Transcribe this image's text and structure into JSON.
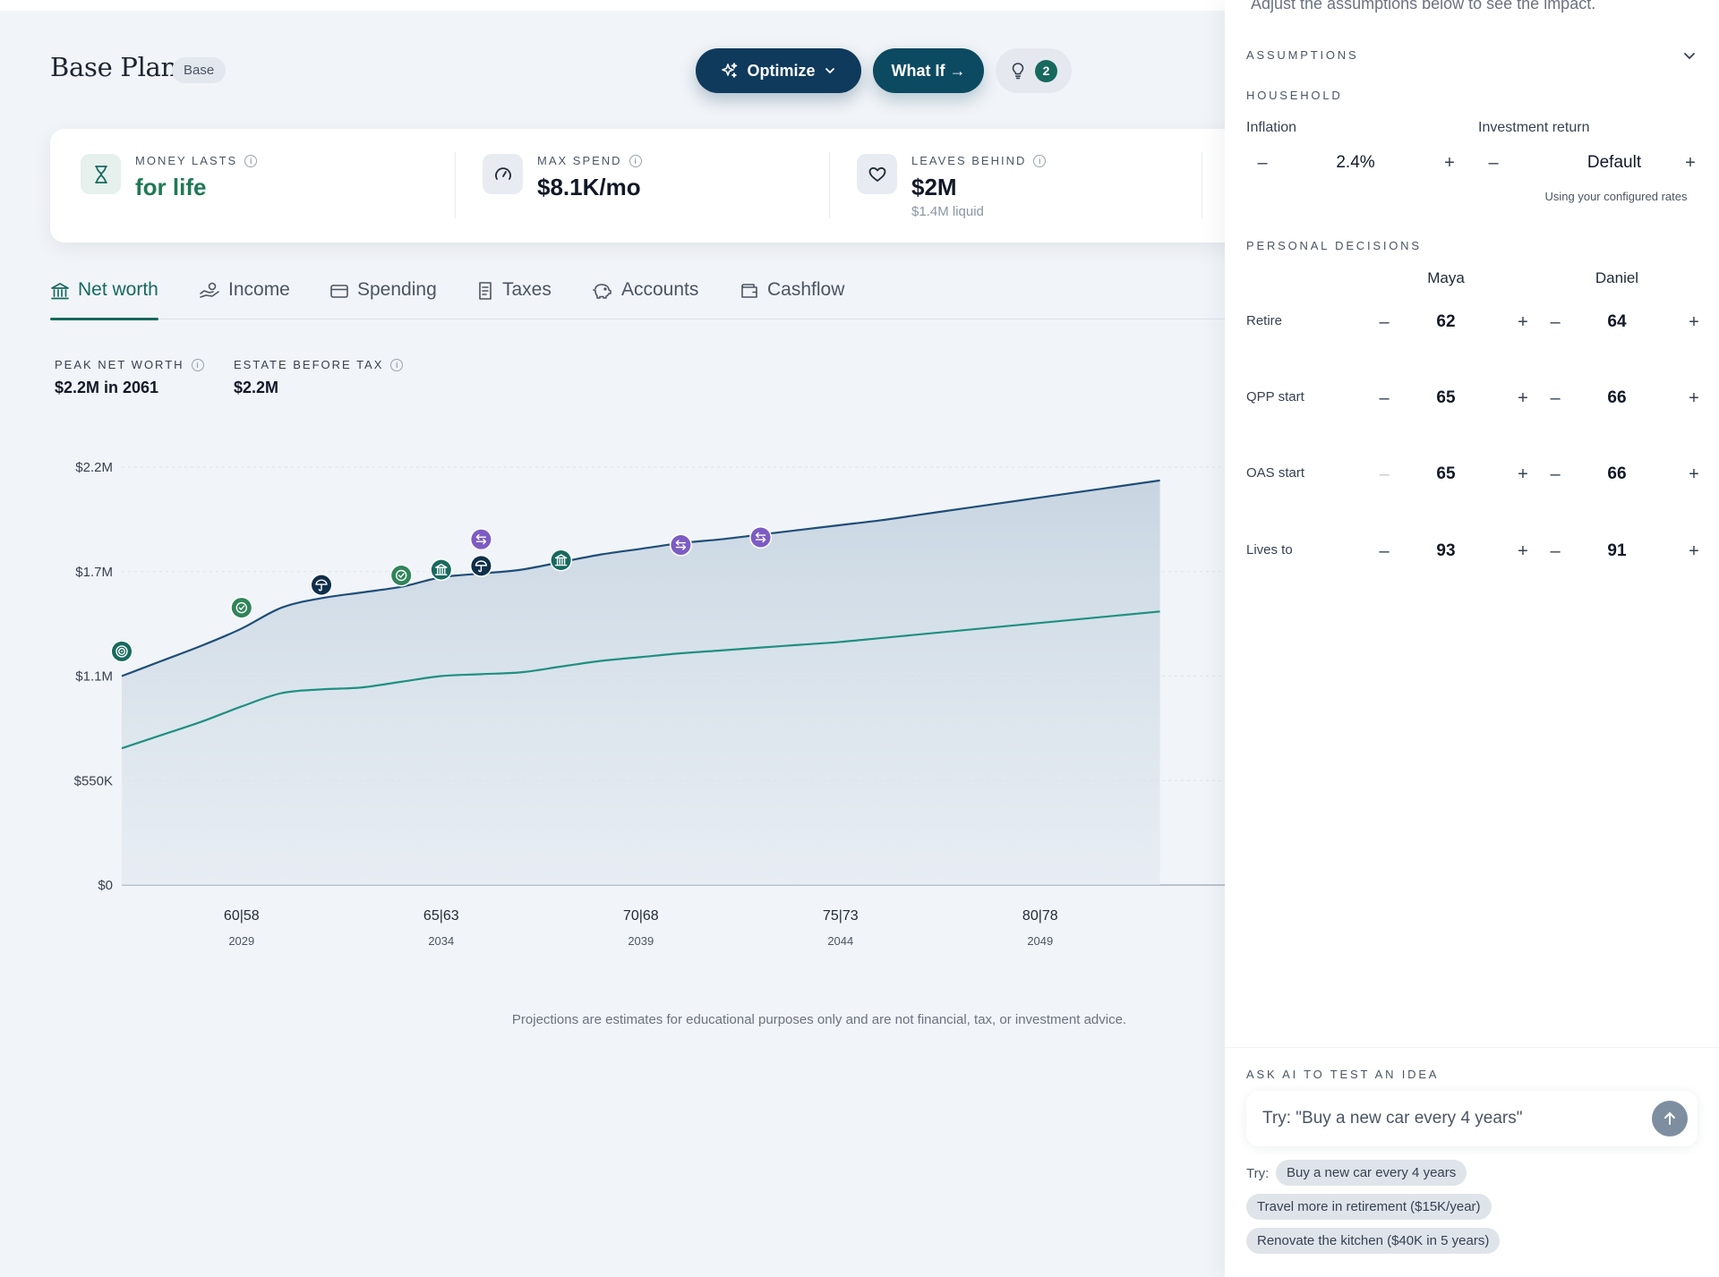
{
  "header": {
    "title": "Base Plan",
    "badge": "Base",
    "optimize_label": "Optimize",
    "whatif_label": "What If →",
    "insights_count": "2"
  },
  "summary": {
    "money_lasts": {
      "label": "MONEY LASTS",
      "value": "for life",
      "icon": "hourglass-icon"
    },
    "max_spend": {
      "label": "MAX SPEND",
      "value": "$8.1K/mo",
      "icon": "gauge-icon"
    },
    "leaves_behind": {
      "label": "LEAVES BEHIND",
      "value": "$2M",
      "sub": "$1.4M liquid",
      "icon": "heart-icon"
    }
  },
  "tabs": [
    {
      "label": "Net worth",
      "icon": "bank-icon",
      "active": true
    },
    {
      "label": "Income",
      "icon": "hand-coins-icon"
    },
    {
      "label": "Spending",
      "icon": "card-icon"
    },
    {
      "label": "Taxes",
      "icon": "receipt-icon"
    },
    {
      "label": "Accounts",
      "icon": "piggy-bank-icon"
    },
    {
      "label": "Cashflow",
      "icon": "wallet-icon"
    }
  ],
  "stats": {
    "peak": {
      "label": "PEAK NET WORTH",
      "value": "$2.2M in 2061"
    },
    "estate": {
      "label": "ESTATE BEFORE TAX",
      "value": "$2.2M"
    }
  },
  "chart_data": {
    "type": "area",
    "x_labels": [
      {
        "ages": "60|58",
        "year": "2029"
      },
      {
        "ages": "65|63",
        "year": "2034"
      },
      {
        "ages": "70|68",
        "year": "2039"
      },
      {
        "ages": "75|73",
        "year": "2044"
      },
      {
        "ages": "80|78",
        "year": "2049"
      }
    ],
    "y_ticks": [
      "$0",
      "$550K",
      "$1.1M",
      "$1.7M",
      "$2.2M"
    ],
    "ylim": [
      0,
      2200000
    ],
    "x": [
      2026,
      2027,
      2028,
      2029,
      2030,
      2031,
      2032,
      2033,
      2034,
      2035,
      2036,
      2037,
      2038,
      2039,
      2040,
      2041,
      2042,
      2043,
      2044,
      2045,
      2046,
      2047,
      2048,
      2049,
      2050,
      2051,
      2052
    ],
    "series": [
      {
        "values": [
          1100000,
          1180000,
          1260000,
          1350000,
          1460000,
          1510000,
          1540000,
          1570000,
          1620000,
          1640000,
          1660000,
          1700000,
          1740000,
          1770000,
          1800000,
          1820000,
          1845000,
          1870000,
          1895000,
          1920000,
          1950000,
          1980000,
          2010000,
          2040000,
          2070000,
          2100000,
          2130000
        ],
        "color": "#1f4e79"
      },
      {
        "values": [
          720000,
          790000,
          860000,
          940000,
          1010000,
          1030000,
          1040000,
          1070000,
          1100000,
          1110000,
          1120000,
          1150000,
          1180000,
          1200000,
          1220000,
          1235000,
          1250000,
          1265000,
          1280000,
          1300000,
          1320000,
          1340000,
          1360000,
          1380000,
          1400000,
          1420000,
          1440000
        ],
        "color": "#1f9080"
      }
    ],
    "events": [
      {
        "x": 2026,
        "y": 1230000,
        "type": "target",
        "color": "#17695e"
      },
      {
        "x": 2029,
        "y": 1460000,
        "type": "check",
        "color": "#2f855a"
      },
      {
        "x": 2031,
        "y": 1580000,
        "type": "umbrella",
        "color": "#0f2f4a"
      },
      {
        "x": 2033,
        "y": 1630000,
        "type": "check",
        "color": "#2f855a"
      },
      {
        "x": 2034,
        "y": 1660000,
        "type": "bank",
        "color": "#17695e"
      },
      {
        "x": 2035,
        "y": 1820000,
        "type": "transfer",
        "color": "#7c5cc4"
      },
      {
        "x": 2035,
        "y": 1680000,
        "type": "umbrella",
        "color": "#0f2f4a"
      },
      {
        "x": 2037,
        "y": 1710000,
        "type": "bank",
        "color": "#17695e"
      },
      {
        "x": 2040,
        "y": 1790000,
        "type": "transfer",
        "color": "#7c5cc4"
      },
      {
        "x": 2042,
        "y": 1830000,
        "type": "transfer",
        "color": "#7c5cc4"
      }
    ]
  },
  "disclaimer": "Projections are estimates for educational purposes only and are not financial, tax, or investment advice.",
  "panel": {
    "intro": "Adjust the assumptions below to see the impact.",
    "assumptions_label": "ASSUMPTIONS",
    "household_label": "HOUSEHOLD",
    "inflation": {
      "label": "Inflation",
      "value": "2.4%"
    },
    "investment_return": {
      "label": "Investment return",
      "value": "Default",
      "note": "Using your configured rates"
    },
    "personal_label": "PERSONAL DECISIONS",
    "people": [
      "Maya",
      "Daniel"
    ],
    "rows": [
      {
        "label": "Retire",
        "maya": "62",
        "daniel": "64"
      },
      {
        "label": "QPP start",
        "maya": "65",
        "daniel": "66"
      },
      {
        "label": "OAS start",
        "maya": "65",
        "daniel": "66"
      },
      {
        "label": "Lives to",
        "maya": "93",
        "daniel": "91"
      }
    ],
    "minus": "–",
    "plus": "+",
    "ai": {
      "label": "ASK AI TO TEST AN IDEA",
      "placeholder": "Try: \"Buy a new car every 4 years\"",
      "try_label": "Try:",
      "suggestions": [
        "Buy a new car every 4 years",
        "Travel more in retirement ($15K/year)",
        "Renovate the kitchen ($40K in 5 years)"
      ]
    }
  }
}
